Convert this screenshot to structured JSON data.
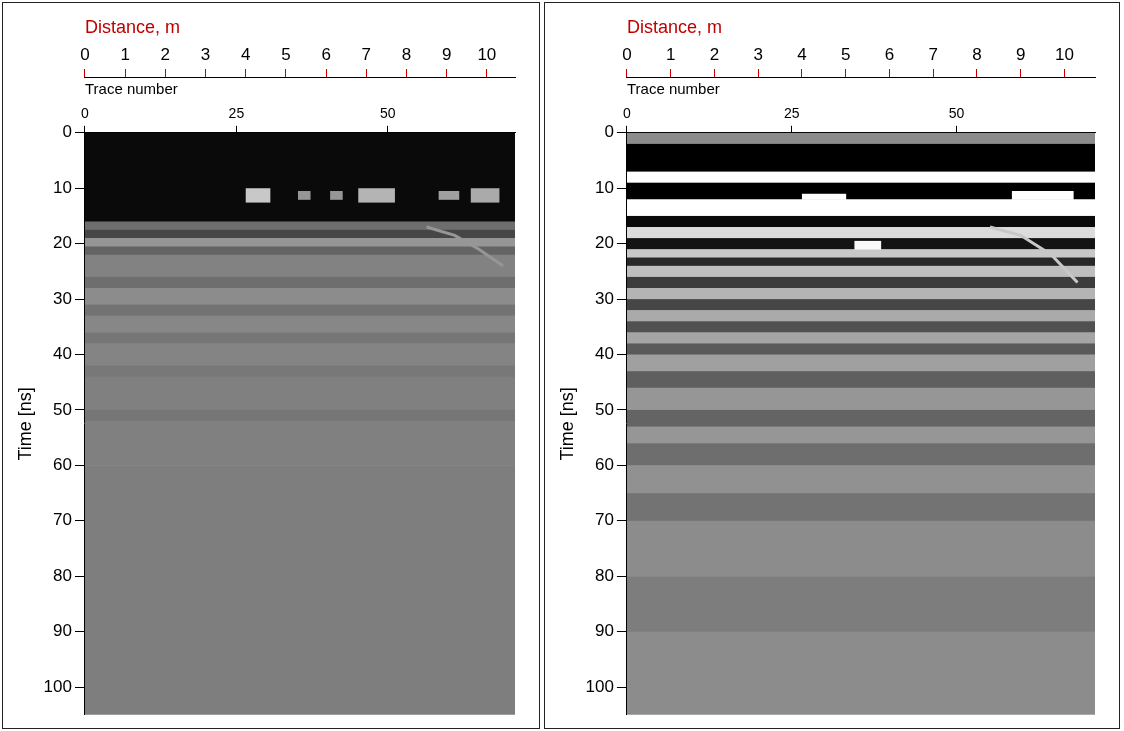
{
  "chart_data": [
    {
      "type": "heatmap",
      "xlabel": "Distance, m",
      "xlim": [
        0,
        10.7
      ],
      "xticks": [
        0,
        1,
        2,
        3,
        4,
        5,
        6,
        7,
        8,
        9,
        10
      ],
      "x2label": "Trace number",
      "x2lim": [
        0,
        71
      ],
      "x2ticks": [
        0,
        25,
        50
      ],
      "ylabel": "Time [ns]",
      "ylim": [
        0,
        105
      ],
      "yticks": [
        0,
        10,
        20,
        30,
        40,
        50,
        60,
        70,
        80,
        90,
        100
      ],
      "grid": false,
      "bands": [
        {
          "t": [
            0,
            16
          ],
          "level": 10
        },
        {
          "t": [
            16,
            17.5
          ],
          "level": 110
        },
        {
          "t": [
            17.5,
            19
          ],
          "level": 70
        },
        {
          "t": [
            19,
            20.5
          ],
          "level": 150
        },
        {
          "t": [
            20.5,
            22
          ],
          "level": 100
        },
        {
          "t": [
            22,
            26
          ],
          "level": 130
        },
        {
          "t": [
            26,
            28
          ],
          "level": 110
        },
        {
          "t": [
            28,
            31
          ],
          "level": 140
        },
        {
          "t": [
            31,
            33
          ],
          "level": 115
        },
        {
          "t": [
            33,
            36
          ],
          "level": 135
        },
        {
          "t": [
            36,
            38
          ],
          "level": 118
        },
        {
          "t": [
            38,
            42
          ],
          "level": 132
        },
        {
          "t": [
            42,
            44
          ],
          "level": 120
        },
        {
          "t": [
            44,
            50
          ],
          "level": 128
        },
        {
          "t": [
            50,
            52
          ],
          "level": 118
        },
        {
          "t": [
            52,
            60
          ],
          "level": 128
        },
        {
          "t": [
            60,
            105
          ],
          "level": 126
        }
      ],
      "patches": [
        {
          "x": [
            4.0,
            4.6
          ],
          "t": [
            10,
            12.5
          ],
          "level": 200
        },
        {
          "x": [
            5.3,
            5.6
          ],
          "t": [
            10.5,
            12
          ],
          "level": 150
        },
        {
          "x": [
            6.1,
            6.4
          ],
          "t": [
            10.5,
            12
          ],
          "level": 150
        },
        {
          "x": [
            6.8,
            7.7
          ],
          "t": [
            10,
            12.5
          ],
          "level": 180
        },
        {
          "x": [
            8.8,
            9.3
          ],
          "t": [
            10.5,
            12
          ],
          "level": 160
        },
        {
          "x": [
            9.6,
            10.3
          ],
          "t": [
            10,
            12.5
          ],
          "level": 170
        }
      ],
      "lines": [
        {
          "x": [
            8.5,
            9.2,
            9.8,
            10.4
          ],
          "t": [
            17,
            18.5,
            21,
            24
          ],
          "level": 150
        }
      ]
    },
    {
      "type": "heatmap",
      "xlabel": "Distance, m",
      "xlim": [
        0,
        10.7
      ],
      "xticks": [
        0,
        1,
        2,
        3,
        4,
        5,
        6,
        7,
        8,
        9,
        10
      ],
      "x2label": "Trace number",
      "x2lim": [
        0,
        71
      ],
      "x2ticks": [
        0,
        25,
        50
      ],
      "ylabel": "Time [ns]",
      "ylim": [
        0,
        105
      ],
      "yticks": [
        0,
        10,
        20,
        30,
        40,
        50,
        60,
        70,
        80,
        90,
        100
      ],
      "grid": false,
      "bands": [
        {
          "t": [
            0,
            2
          ],
          "level": 140
        },
        {
          "t": [
            2,
            7
          ],
          "level": 0
        },
        {
          "t": [
            7,
            9
          ],
          "level": 255
        },
        {
          "t": [
            9,
            12
          ],
          "level": 0
        },
        {
          "t": [
            12,
            15
          ],
          "level": 255
        },
        {
          "t": [
            15,
            17
          ],
          "level": 10
        },
        {
          "t": [
            17,
            19
          ],
          "level": 220
        },
        {
          "t": [
            19,
            21
          ],
          "level": 20
        },
        {
          "t": [
            21,
            22.5
          ],
          "level": 200
        },
        {
          "t": [
            22.5,
            24
          ],
          "level": 40
        },
        {
          "t": [
            24,
            26
          ],
          "level": 190
        },
        {
          "t": [
            26,
            28
          ],
          "level": 60
        },
        {
          "t": [
            28,
            30
          ],
          "level": 180
        },
        {
          "t": [
            30,
            32
          ],
          "level": 70
        },
        {
          "t": [
            32,
            34
          ],
          "level": 170
        },
        {
          "t": [
            34,
            36
          ],
          "level": 80
        },
        {
          "t": [
            36,
            38
          ],
          "level": 165
        },
        {
          "t": [
            38,
            40
          ],
          "level": 90
        },
        {
          "t": [
            40,
            43
          ],
          "level": 160
        },
        {
          "t": [
            43,
            46
          ],
          "level": 95
        },
        {
          "t": [
            46,
            50
          ],
          "level": 150
        },
        {
          "t": [
            50,
            53
          ],
          "level": 100
        },
        {
          "t": [
            53,
            56
          ],
          "level": 150
        },
        {
          "t": [
            56,
            60
          ],
          "level": 110
        },
        {
          "t": [
            60,
            65
          ],
          "level": 145
        },
        {
          "t": [
            65,
            70
          ],
          "level": 115
        },
        {
          "t": [
            70,
            80
          ],
          "level": 140
        },
        {
          "t": [
            80,
            90
          ],
          "level": 125
        },
        {
          "t": [
            90,
            105
          ],
          "level": 140
        }
      ],
      "patches": [
        {
          "x": [
            4.0,
            5.0
          ],
          "t": [
            11,
            12
          ],
          "level": 255
        },
        {
          "x": [
            8.8,
            10.2
          ],
          "t": [
            10.5,
            12
          ],
          "level": 255
        },
        {
          "x": [
            5.2,
            5.8
          ],
          "t": [
            19.5,
            21
          ],
          "level": 250
        }
      ],
      "lines": [
        {
          "x": [
            8.3,
            9.0,
            9.7,
            10.3
          ],
          "t": [
            17,
            18.5,
            22,
            27
          ],
          "level": 200
        }
      ]
    }
  ]
}
